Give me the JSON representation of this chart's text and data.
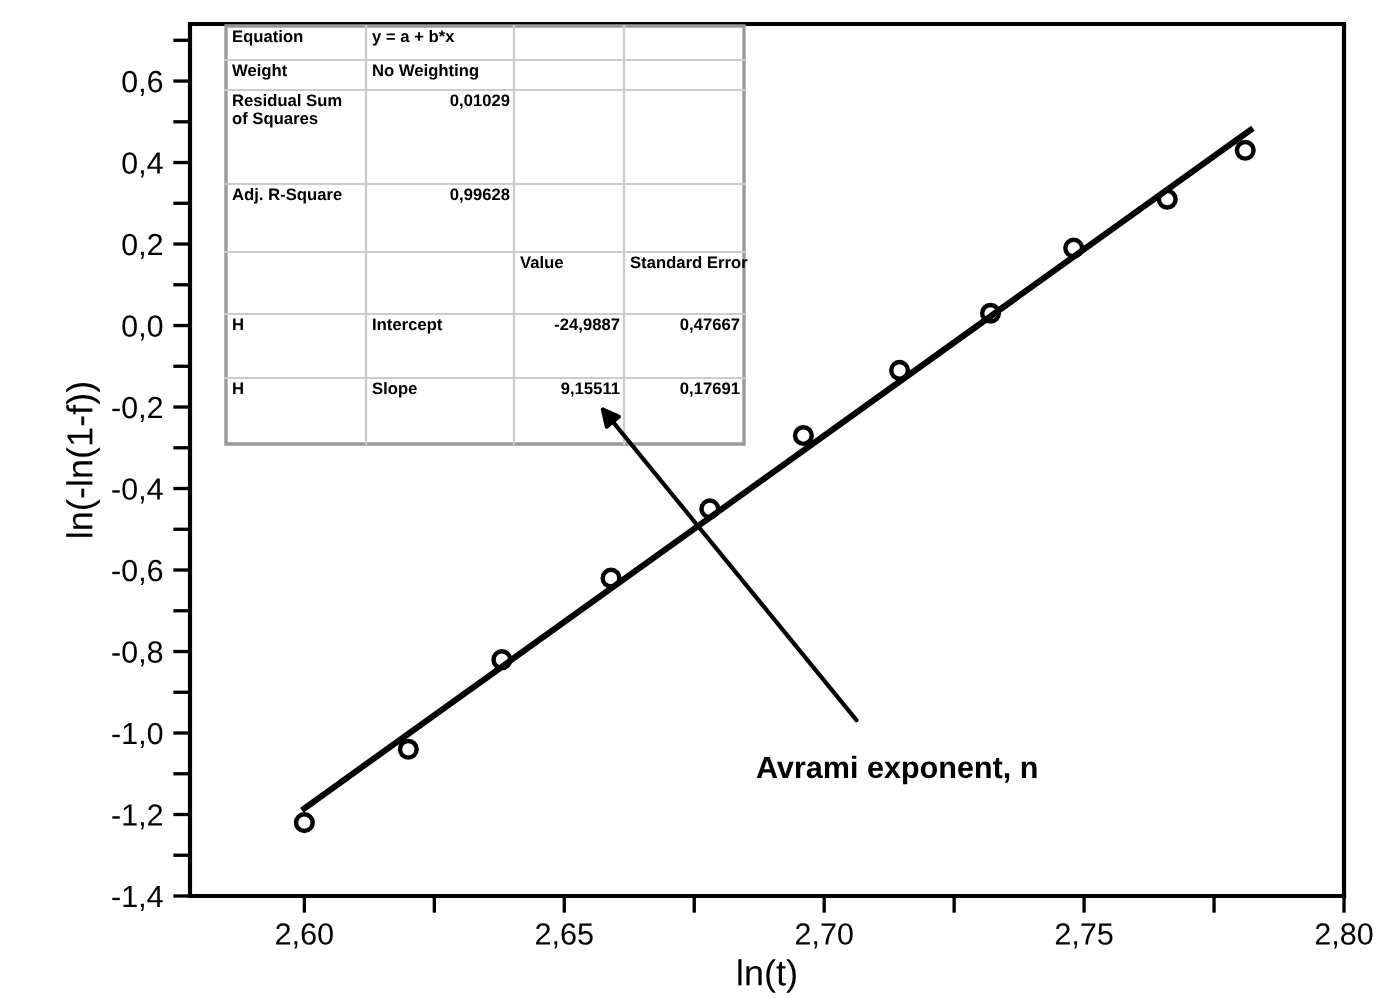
{
  "chart_data": {
    "type": "scatter",
    "xlabel": "ln(t)",
    "ylabel": "ln(-ln(1-f))",
    "series": [
      {
        "color": "#000000",
        "marker": "circle",
        "x": [
          2.6,
          2.62,
          2.638,
          2.659,
          2.678,
          2.696,
          2.7145,
          2.732,
          2.748,
          2.766,
          2.781
        ],
        "values": [
          -1.22,
          -1.04,
          -0.82,
          -0.62,
          -0.45,
          -0.27,
          -0.11,
          0.03,
          0.19,
          0.31,
          0.43
        ]
      },
      {
        "type": "line",
        "color": "#000000",
        "marker": "none",
        "x": [
          2.6,
          2.782
        ],
        "values": [
          -1.185,
          0.48
        ]
      }
    ],
    "xlim": [
      2.578,
      2.8
    ],
    "ylim": [
      -1.4,
      0.74
    ],
    "xticks": [
      {
        "value": 2.6,
        "label": "2,60"
      },
      {
        "value": 2.625,
        "label": null
      },
      {
        "value": 2.65,
        "label": "2,65"
      },
      {
        "value": 2.675,
        "label": null
      },
      {
        "value": 2.7,
        "label": "2,70"
      },
      {
        "value": 2.725,
        "label": null
      },
      {
        "value": 2.75,
        "label": "2,75"
      },
      {
        "value": 2.775,
        "label": null
      },
      {
        "value": 2.8,
        "label": "2,80"
      }
    ],
    "yticks": [
      {
        "value": -1.4,
        "label": "-1,4"
      },
      {
        "value": -1.3,
        "label": null
      },
      {
        "value": -1.2,
        "label": "-1,2"
      },
      {
        "value": -1.1,
        "label": null
      },
      {
        "value": -1.0,
        "label": "-1,0"
      },
      {
        "value": -0.9,
        "label": null
      },
      {
        "value": -0.8,
        "label": "-0,8"
      },
      {
        "value": -0.7,
        "label": null
      },
      {
        "value": -0.6,
        "label": "-0,6"
      },
      {
        "value": -0.5,
        "label": null
      },
      {
        "value": -0.4,
        "label": "-0,4"
      },
      {
        "value": -0.3,
        "label": null
      },
      {
        "value": -0.2,
        "label": "-0,2"
      },
      {
        "value": -0.1,
        "label": null
      },
      {
        "value": 0.0,
        "label": "0,0"
      },
      {
        "value": 0.1,
        "label": null
      },
      {
        "value": 0.2,
        "label": "0,2"
      },
      {
        "value": 0.3,
        "label": null
      },
      {
        "value": 0.4,
        "label": "0,4"
      },
      {
        "value": 0.5,
        "label": null
      },
      {
        "value": 0.6,
        "label": "0,6"
      },
      {
        "value": 0.7,
        "label": null
      }
    ],
    "grid": false,
    "legend": false,
    "annotations": [
      "Equation",
      "y = a + b*x",
      "Weight",
      "No Weighting",
      "Residual Sum\nof Squares",
      "0,01029",
      "Adj. R-Square",
      "0,99628",
      "Value",
      "Standard Error",
      "H",
      "Intercept",
      "-24,9887",
      "0,47667",
      "H",
      "Slope",
      "9,15511",
      "0,17691",
      "Avrami exponent, n"
    ]
  }
}
